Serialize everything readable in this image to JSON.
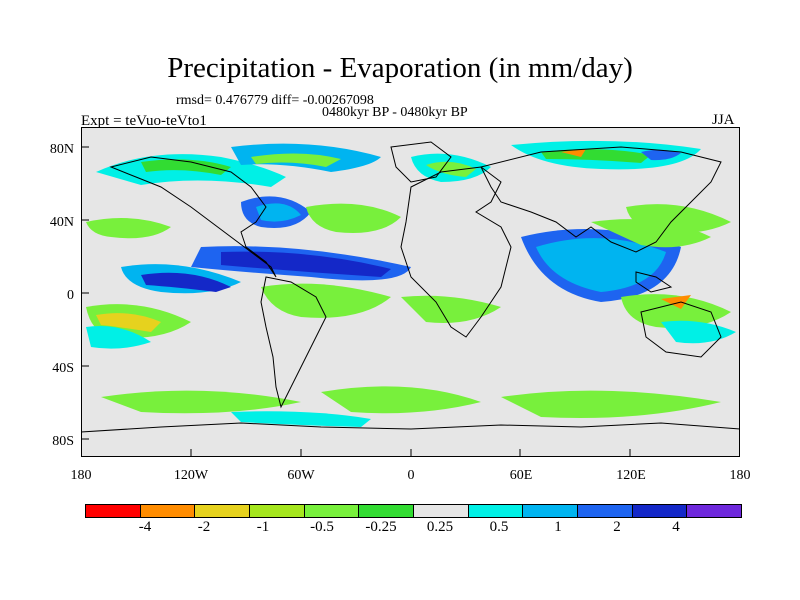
{
  "title": "Precipitation - Evaporation (in mm/day)",
  "stats": "rmsd= 0.476779 diff= -0.00267098",
  "period": "0480kyr BP - 0480kyr BP",
  "experiment": "Expt = teVuo-teVto1",
  "season": "JJA",
  "map_labels": {
    "lat": [
      "80N",
      "40N",
      "0",
      "40S",
      "80S"
    ],
    "lon": [
      "180",
      "120W",
      "60W",
      "0",
      "60E",
      "120E",
      "180"
    ]
  },
  "colorbar": {
    "colors": [
      "#ff0000",
      "#ff8c00",
      "#e6d21e",
      "#a5e61e",
      "#78f03c",
      "#32dc32",
      "#e6e6e6",
      "#00f0e6",
      "#00b4f0",
      "#1e64f0",
      "#1428c8",
      "#6e28dc"
    ],
    "labels": [
      "-4",
      "-2",
      "-1",
      "-0.5",
      "-0.25",
      "0.25",
      "0.5",
      "1",
      "2",
      "4"
    ]
  },
  "colors": {
    "land_ocean_background": "#e6e6e6",
    "coastline": "#000000"
  }
}
